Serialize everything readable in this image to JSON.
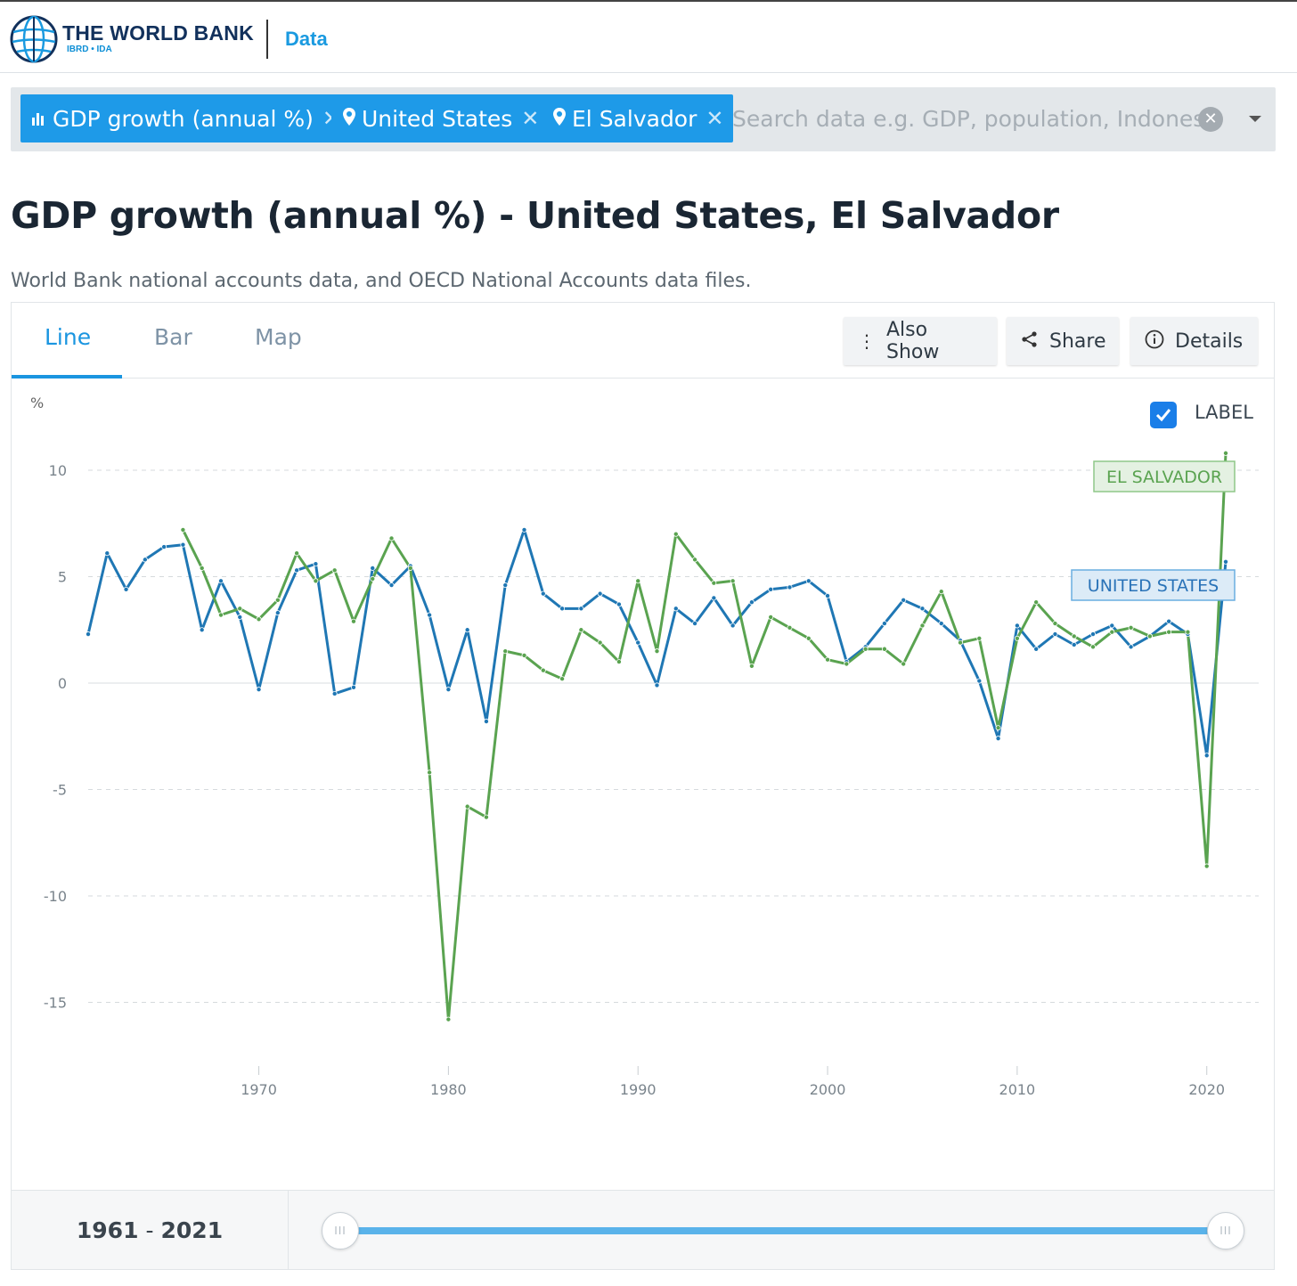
{
  "header": {
    "brand": "THE WORLD BANK",
    "brand_sub": "IBRD • IDA",
    "data_link": "Data"
  },
  "search": {
    "chips": [
      {
        "label": "GDP growth (annual %)",
        "icon": "bar-chart-icon"
      },
      {
        "label": "United States",
        "icon": "location-pin-icon"
      },
      {
        "label": "El Salvador",
        "icon": "location-pin-icon"
      }
    ],
    "placeholder": "Search data e.g. GDP, population, Indonesia",
    "value": ""
  },
  "page": {
    "title": "GDP growth (annual %) - United States, El Salvador",
    "source": "World Bank national accounts data, and OECD National Accounts data files."
  },
  "tabs": [
    {
      "label": "Line",
      "active": true
    },
    {
      "label": "Bar",
      "active": false
    },
    {
      "label": "Map",
      "active": false
    }
  ],
  "toolbar": {
    "also_show": "Also Show",
    "share": "Share",
    "details": "Details"
  },
  "label_toggle": {
    "label": "LABEL",
    "checked": true
  },
  "range": {
    "start": "1961",
    "end": "2021",
    "separator": "-"
  },
  "colors": {
    "united_states": "#1f77b4",
    "el_salvador": "#5aa350",
    "accent": "#1a95e0"
  },
  "chart_data": {
    "type": "line",
    "title": "",
    "xlabel": "",
    "ylabel": "%",
    "xlim": [
      1961,
      2021
    ],
    "ylim": [
      -17,
      11.5
    ],
    "yticks": [
      10,
      5,
      0,
      -5,
      -10,
      -15
    ],
    "xticks": [
      1970,
      1980,
      1990,
      2000,
      2010,
      2020
    ],
    "grid": true,
    "x": [
      1961,
      1962,
      1963,
      1964,
      1965,
      1966,
      1967,
      1968,
      1969,
      1970,
      1971,
      1972,
      1973,
      1974,
      1975,
      1976,
      1977,
      1978,
      1979,
      1980,
      1981,
      1982,
      1983,
      1984,
      1985,
      1986,
      1987,
      1988,
      1989,
      1990,
      1991,
      1992,
      1993,
      1994,
      1995,
      1996,
      1997,
      1998,
      1999,
      2000,
      2001,
      2002,
      2003,
      2004,
      2005,
      2006,
      2007,
      2008,
      2009,
      2010,
      2011,
      2012,
      2013,
      2014,
      2015,
      2016,
      2017,
      2018,
      2019,
      2020,
      2021
    ],
    "series": [
      {
        "name": "UNITED STATES",
        "color": "#1f77b4",
        "values": [
          2.3,
          6.1,
          4.4,
          5.8,
          6.4,
          6.5,
          2.5,
          4.8,
          3.1,
          -0.3,
          3.3,
          5.3,
          5.6,
          -0.5,
          -0.2,
          5.4,
          4.6,
          5.5,
          3.2,
          -0.3,
          2.5,
          -1.8,
          4.6,
          7.2,
          4.2,
          3.5,
          3.5,
          4.2,
          3.7,
          1.9,
          -0.1,
          3.5,
          2.8,
          4.0,
          2.7,
          3.8,
          4.4,
          4.5,
          4.8,
          4.1,
          1.0,
          1.7,
          2.8,
          3.9,
          3.5,
          2.8,
          2.0,
          0.1,
          -2.6,
          2.7,
          1.6,
          2.3,
          1.8,
          2.3,
          2.7,
          1.7,
          2.2,
          2.9,
          2.3,
          -3.4,
          5.7
        ]
      },
      {
        "name": "EL SALVADOR",
        "color": "#5aa350",
        "values": [
          null,
          null,
          null,
          null,
          null,
          7.2,
          5.4,
          3.2,
          3.5,
          3.0,
          3.9,
          6.1,
          4.8,
          5.3,
          2.9,
          4.9,
          6.8,
          5.4,
          -4.2,
          -15.8,
          -5.8,
          -6.3,
          1.5,
          1.3,
          0.6,
          0.2,
          2.5,
          1.9,
          1.0,
          4.8,
          1.5,
          7.0,
          5.8,
          4.7,
          4.8,
          0.8,
          3.1,
          2.6,
          2.1,
          1.1,
          0.9,
          1.6,
          1.6,
          0.9,
          2.7,
          4.3,
          1.9,
          2.1,
          -2.1,
          2.1,
          3.8,
          2.8,
          2.2,
          1.7,
          2.4,
          2.6,
          2.2,
          2.4,
          2.4,
          -8.6,
          10.8
        ]
      }
    ]
  }
}
